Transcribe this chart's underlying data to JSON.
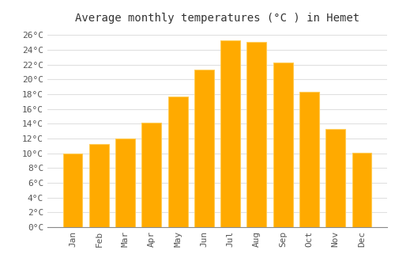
{
  "title": "Average monthly temperatures (°C ) in Hemet",
  "months": [
    "Jan",
    "Feb",
    "Mar",
    "Apr",
    "May",
    "Jun",
    "Jul",
    "Aug",
    "Sep",
    "Oct",
    "Nov",
    "Dec"
  ],
  "values": [
    10,
    11.3,
    12,
    14.1,
    17.7,
    21.3,
    25.3,
    25.1,
    22.3,
    18.3,
    13.3,
    10.1
  ],
  "bar_color_main": "#FFAA00",
  "bar_color_light": "#FFCC55",
  "ylim": [
    0,
    27
  ],
  "yticks": [
    0,
    2,
    4,
    6,
    8,
    10,
    12,
    14,
    16,
    18,
    20,
    22,
    24,
    26
  ],
  "ytick_labels": [
    "0°C",
    "2°C",
    "4°C",
    "6°C",
    "8°C",
    "10°C",
    "12°C",
    "14°C",
    "16°C",
    "18°C",
    "20°C",
    "22°C",
    "24°C",
    "26°C"
  ],
  "fig_background": "#ffffff",
  "plot_background": "#ffffff",
  "grid_color": "#e0e0e0",
  "title_fontsize": 10,
  "tick_fontsize": 8,
  "bar_width": 0.75
}
